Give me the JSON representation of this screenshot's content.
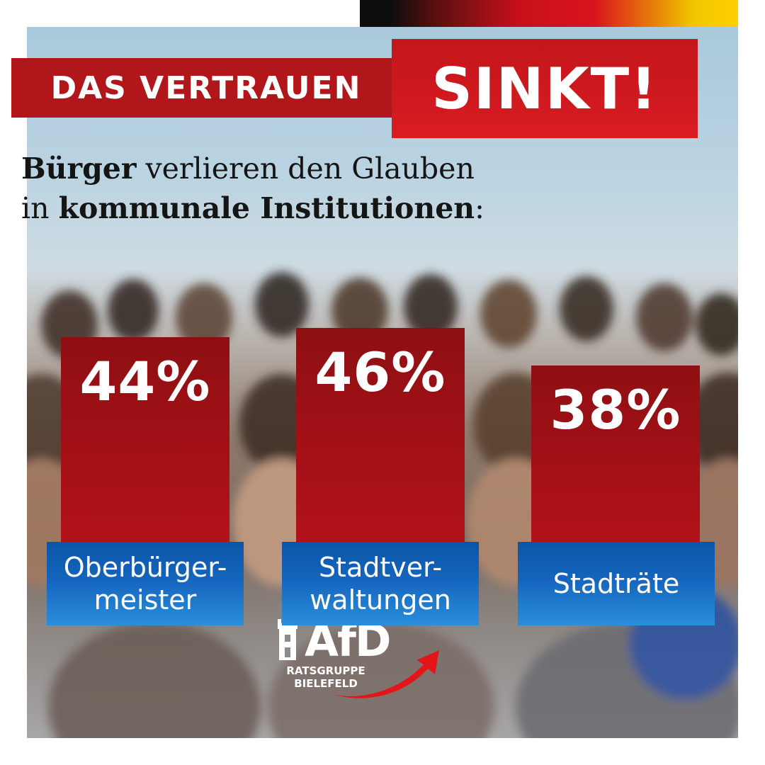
{
  "headline": {
    "part1": "DAS VERTRAUEN",
    "part2": "SINKT!"
  },
  "subtitle": {
    "line1_bold": "Bürger",
    "line1_rest": " verlieren den Glauben",
    "line2_pre": "in ",
    "line2_bold": "kommunale Institutionen",
    "line2_post": ":"
  },
  "chart_data": {
    "type": "bar",
    "categories": [
      "Oberbürger-meister",
      "Stadtver-waltungen",
      "Stadträte"
    ],
    "category_lines": [
      [
        "Oberbürger-",
        "meister"
      ],
      [
        "Stadtver-",
        "waltungen"
      ],
      [
        "Stadträte"
      ]
    ],
    "values": [
      44,
      46,
      38
    ],
    "value_labels": [
      "44%",
      "46%",
      "38%"
    ],
    "unit": "%",
    "bar_color": "#b3121a",
    "label_color": "#1565be"
  },
  "logo": {
    "name": "AfD",
    "sub_line1": "RATSGRUPPE",
    "sub_line2": "BIELEFELD"
  },
  "colors": {
    "headline_red": "#b0161a",
    "accent_red": "#d91c22",
    "label_blue": "#1565be"
  }
}
